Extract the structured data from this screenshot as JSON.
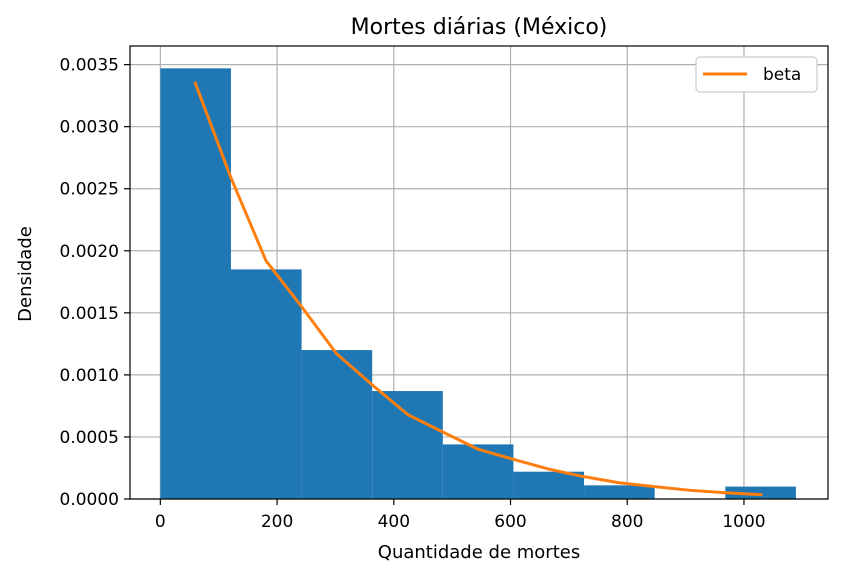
{
  "chart_data": {
    "type": "bar",
    "title": "Mortes diárias (México)",
    "xlabel": "Quantidade de mortes",
    "ylabel": "Densidade",
    "xlim": [
      -52,
      1144
    ],
    "ylim": [
      0,
      0.00365
    ],
    "xticks": [
      0,
      200,
      400,
      600,
      800,
      1000
    ],
    "xtick_labels": [
      "0",
      "200",
      "400",
      "600",
      "800",
      "1000"
    ],
    "yticks": [
      0,
      0.0005,
      0.001,
      0.0015,
      0.002,
      0.0025,
      0.003,
      0.0035
    ],
    "ytick_labels": [
      "0.0000",
      "0.0005",
      "0.0010",
      "0.0015",
      "0.0020",
      "0.0025",
      "0.0030",
      "0.0035"
    ],
    "grid": true,
    "legend_position": "top-right",
    "histogram": {
      "bin_edges": [
        0,
        121,
        242,
        363,
        484,
        605,
        726,
        847,
        968,
        1089
      ],
      "values": [
        0.00347,
        0.00185,
        0.0012,
        0.00087,
        0.00044,
        0.00022,
        0.00011,
        0.0,
        0.0001
      ],
      "color": "#1f77b4"
    },
    "series": [
      {
        "name": "beta",
        "type": "line",
        "color": "#ff7f0e",
        "x": [
          60,
          120,
          181,
          242,
          302,
          363,
          424,
          484,
          545,
          605,
          666,
          726,
          787,
          847,
          908,
          968,
          1029
        ],
        "y": [
          0.00335,
          0.0026,
          0.00192,
          0.00155,
          0.00117,
          0.00092,
          0.00068,
          0.00054,
          0.0004,
          0.00032,
          0.00024,
          0.00018,
          0.00013,
          0.0001,
          7e-05,
          5e-05,
          3.5e-05
        ]
      }
    ]
  }
}
